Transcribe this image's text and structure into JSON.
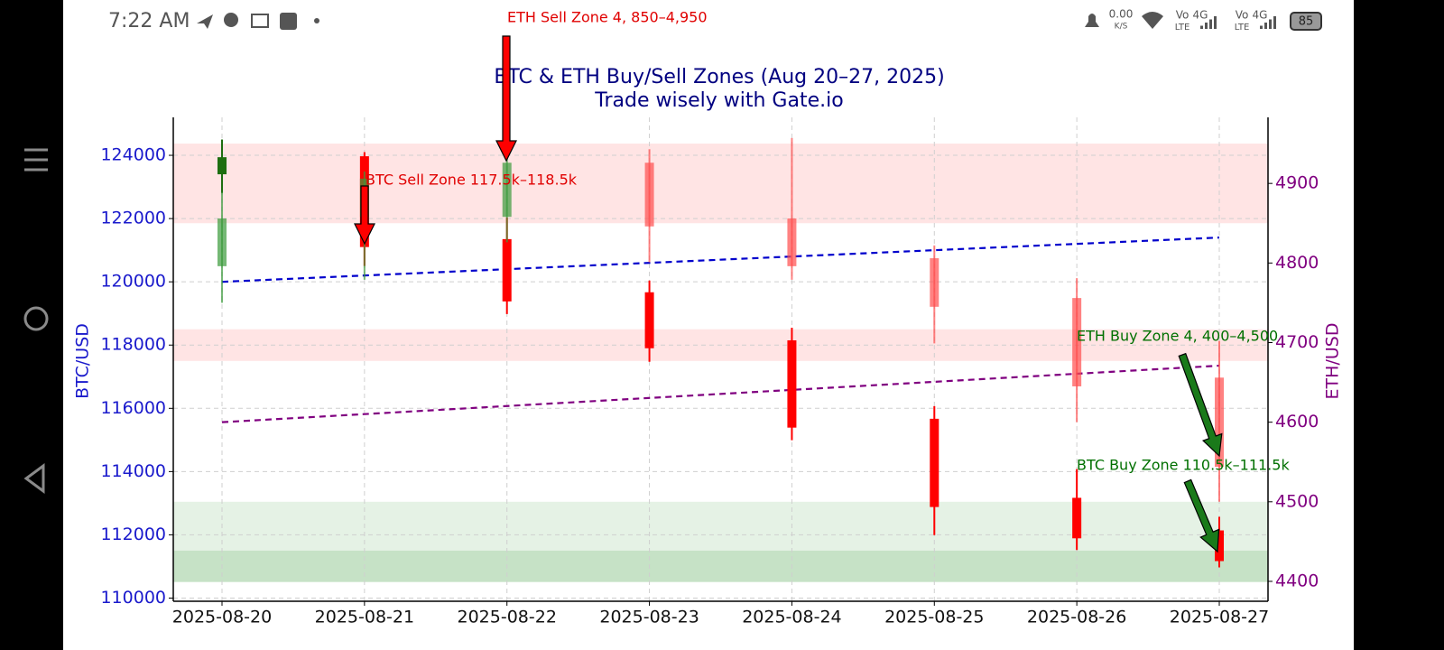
{
  "status_bar": {
    "time": "7:22 AM",
    "net_speed": "0.00",
    "net_unit": "K/S",
    "sims": [
      {
        "voice": "Vo",
        "voice_sub": "LTE",
        "net": "4G"
      },
      {
        "voice": "Vo",
        "voice_sub": "LTE",
        "net": "4G"
      }
    ],
    "battery": "85"
  },
  "chart_data": {
    "type": "candlestick",
    "title": "BTC & ETH Buy/Sell Zones (Aug 20–27, 2025)",
    "subtitle": "Trade wisely with Gate.io",
    "y_label": "BTC/USD",
    "y2_label": "ETH/USD",
    "categories": [
      "2025-08-20",
      "2025-08-21",
      "2025-08-22",
      "2025-08-23",
      "2025-08-24",
      "2025-08-25",
      "2025-08-26",
      "2025-08-27"
    ],
    "ylim": [
      109900,
      125200
    ],
    "yticks": [
      110000,
      112000,
      114000,
      116000,
      118000,
      120000,
      122000,
      124000
    ],
    "y2lim": [
      4375,
      4983
    ],
    "y2ticks": [
      4400,
      4500,
      4600,
      4700,
      4800,
      4900
    ],
    "grid": true,
    "y_color": "#1a1acc",
    "y2_color": "#800080",
    "title_color": "#000080",
    "series": [
      {
        "axis": "y",
        "up_color": "#1e6e10",
        "down_color": "#ff0000",
        "opacity": 1,
        "open": [
          123400,
          123970,
          121350,
          119670,
          118150,
          115670,
          113170,
          112140
        ],
        "high": [
          124500,
          124100,
          122030,
          120040,
          118550,
          116070,
          114080,
          112570
        ],
        "low": [
          122800,
          120500,
          118980,
          117470,
          114990,
          111990,
          111520,
          110970
        ],
        "close": [
          123940,
          121100,
          119380,
          117900,
          115390,
          112880,
          111890,
          111170
        ]
      },
      {
        "axis": "y2",
        "up_color": "#3a9a3a",
        "down_color": "#ff4d4d",
        "opacity": 0.7,
        "open": [
          4796,
          4858,
          4858,
          4926,
          4856,
          4806,
          4756,
          4656
        ],
        "high": [
          4889,
          4915,
          4932,
          4943,
          4957,
          4822,
          4781,
          4702
        ],
        "low": [
          4750,
          4779,
          4826,
          4801,
          4779,
          4699,
          4600,
          4500
        ],
        "close": [
          4856,
          4906,
          4926,
          4846,
          4796,
          4745,
          4645,
          4544
        ]
      }
    ],
    "zones": [
      {
        "axis": "y2",
        "range": [
          4850,
          4950
        ],
        "color": "#ffb3b3",
        "opacity": 0.35
      },
      {
        "axis": "y",
        "range": [
          117500,
          118500
        ],
        "color": "#ffb3b3",
        "opacity": 0.35
      },
      {
        "axis": "y2",
        "range": [
          4400,
          4500
        ],
        "color": "#a8d5a8",
        "opacity": 0.3
      },
      {
        "axis": "y",
        "range": [
          110500,
          111500
        ],
        "color": "#8cc78c",
        "opacity": 0.35
      }
    ],
    "trend_lines": [
      {
        "axis": "y",
        "color": "#0000cc",
        "values": [
          120000,
          121400
        ]
      },
      {
        "axis": "y2",
        "color": "#800080",
        "values": [
          4600,
          4671
        ]
      }
    ],
    "annotations": [
      {
        "text": "ETH Sell Zone 4, 850–4,950",
        "color": "#e00000"
      },
      {
        "text": "BTC Sell Zone 117.5k–118.5k",
        "color": "#e00000"
      },
      {
        "text": "ETH Buy Zone 4, 400–4,500",
        "color": "#007000"
      },
      {
        "text": "BTC Buy Zone 110.5k–111.5k",
        "color": "#007000"
      }
    ]
  }
}
